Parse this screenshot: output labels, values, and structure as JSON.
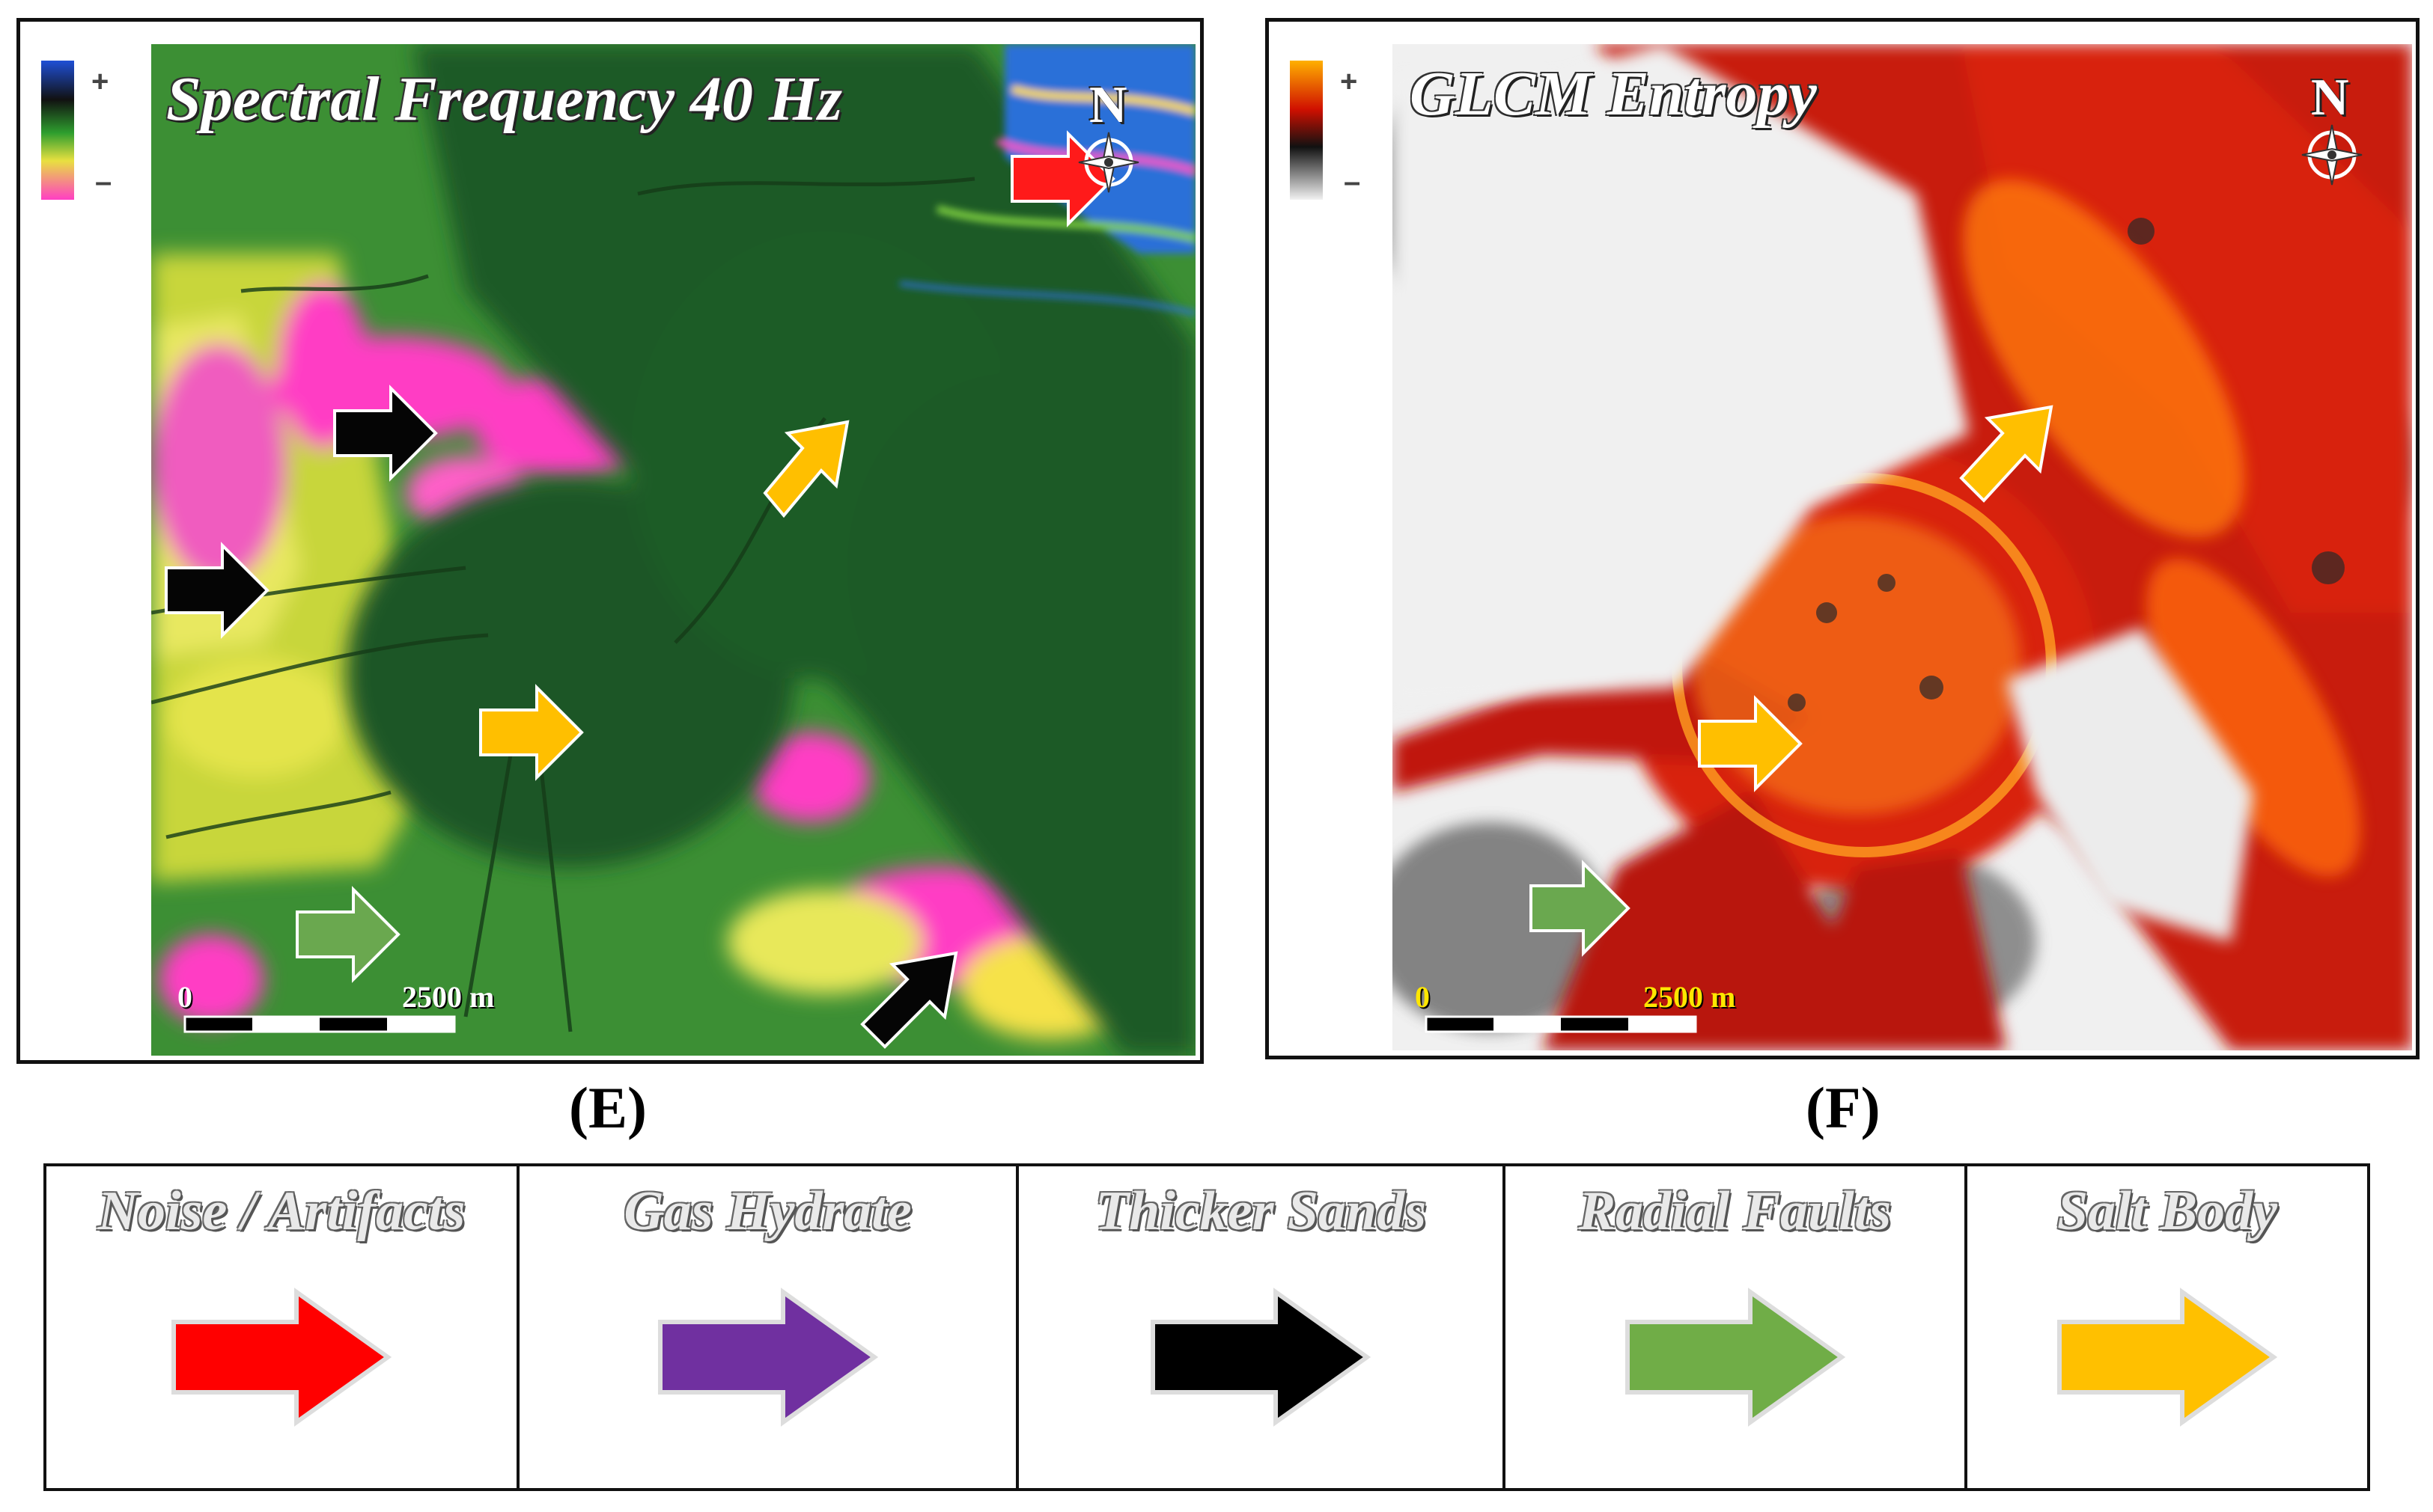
{
  "panel_e": {
    "title": "Spectral Frequency   40 Hz",
    "colorbar_plus": "+",
    "colorbar_minus": "–",
    "north": "N",
    "scale_zero": "0",
    "scale_end": "2500 m",
    "label": "(E)"
  },
  "panel_f": {
    "title": "GLCM Entropy",
    "colorbar_plus": "+",
    "colorbar_minus": "–",
    "north": "N",
    "scale_zero": "0",
    "scale_end": "2500 m",
    "label": "(F)"
  },
  "legend": [
    {
      "label": "Noise / Artifacts",
      "color": "#ff0000"
    },
    {
      "label": "Gas Hydrate",
      "color": "#7030a0"
    },
    {
      "label": "Thicker Sands",
      "color": "#000000"
    },
    {
      "label": "Radial Faults",
      "color": "#70ad47"
    },
    {
      "label": "Salt Body",
      "color": "#ffc000"
    }
  ],
  "colors": {
    "spectral_high": "#1f4fd6",
    "spectral_mid": "#2e9e2e",
    "spectral_low": "#ff1fb4",
    "entropy_high": "#ffb000",
    "entropy_mid": "#d01000",
    "entropy_low": "#f2f2f2"
  }
}
